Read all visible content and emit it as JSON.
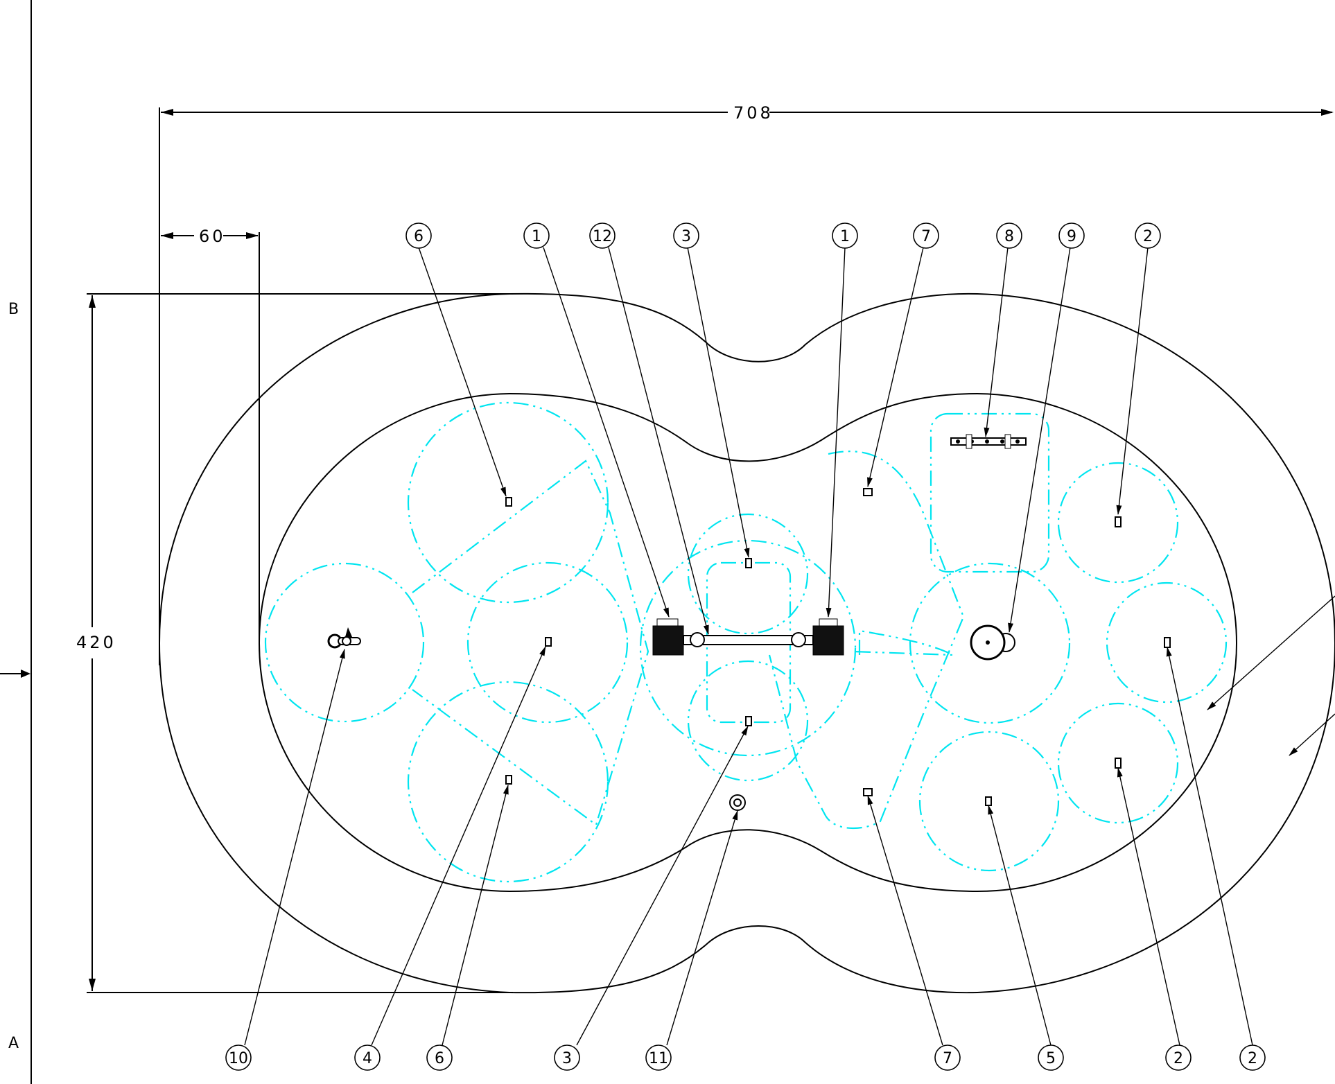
{
  "zone_labels": {
    "top": "B",
    "bottom": "A"
  },
  "dimensions": {
    "overall_length": "708",
    "offset": "60",
    "overall_width": "420"
  },
  "balloons": {
    "top": [
      "6",
      "1",
      "12",
      "3",
      "1",
      "7",
      "8",
      "9",
      "2"
    ],
    "bottom": [
      "10",
      "4",
      "6",
      "3",
      "11",
      "7",
      "5",
      "2",
      "2"
    ]
  }
}
